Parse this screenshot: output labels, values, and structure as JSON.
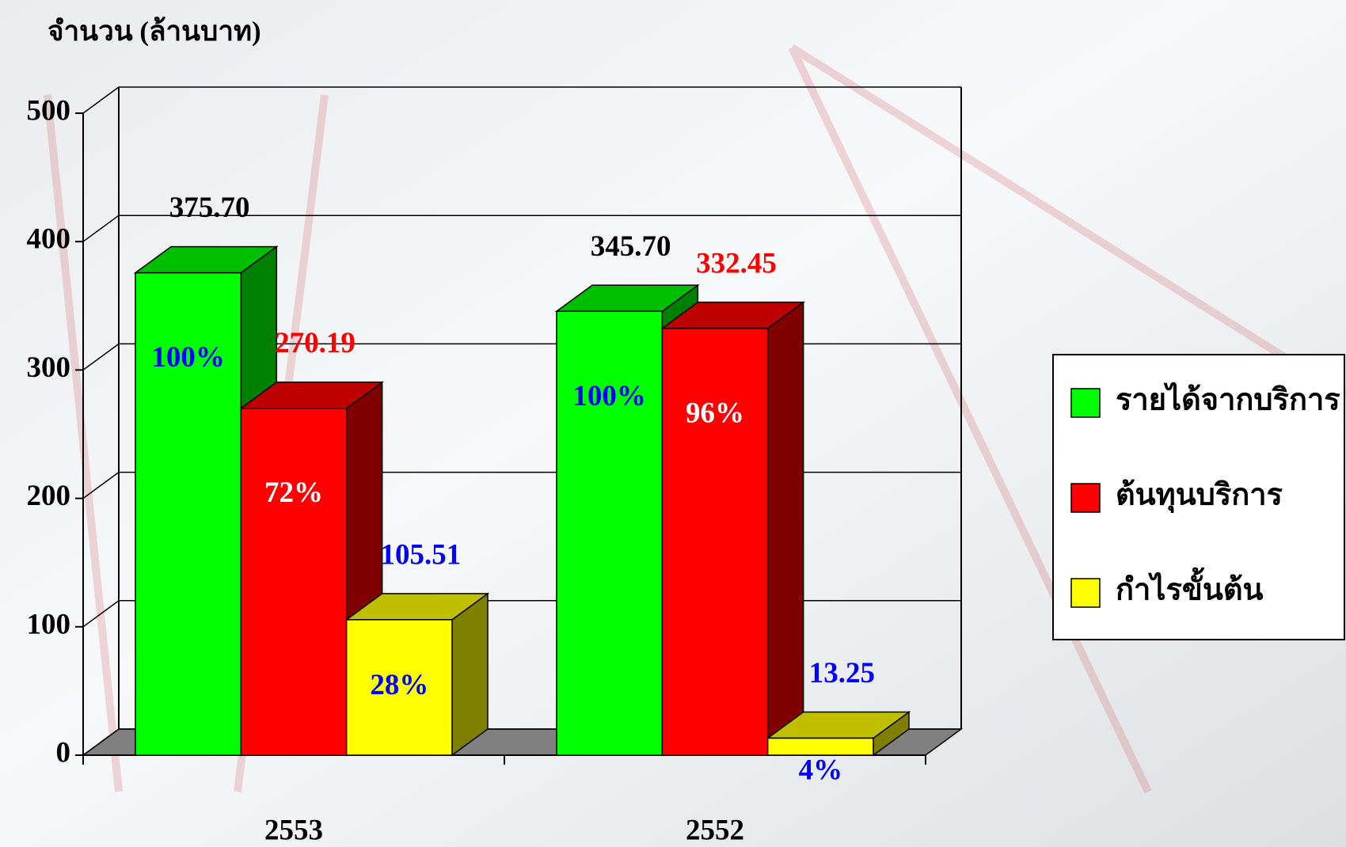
{
  "chart_data": {
    "type": "bar3d",
    "y_axis_label": "จำนวน (ล้านบาท)",
    "categories": [
      "2553",
      "2552"
    ],
    "series": [
      {
        "name": "รายได้จากบริการ",
        "color": "#00ff00",
        "label_color": "#000000",
        "percent_color": "#0000ff",
        "values": [
          375.7,
          345.7
        ],
        "value_labels": [
          "375.70",
          "345.70"
        ],
        "percent_labels": [
          "100%",
          "100%"
        ]
      },
      {
        "name": "ต้นทุนบริการ",
        "color": "#ff0000",
        "label_color": "#ff0000",
        "percent_color": "#ffffff",
        "values": [
          270.19,
          332.45
        ],
        "value_labels": [
          "270.19",
          "332.45"
        ],
        "percent_labels": [
          "72%",
          "96%"
        ]
      },
      {
        "name": "กำไรขั้นต้น",
        "color": "#ffff00",
        "label_color": "#0000ff",
        "percent_color": "#0000ff",
        "values": [
          105.51,
          13.25
        ],
        "value_labels": [
          "105.51",
          "13.25"
        ],
        "percent_labels": [
          "28%",
          "4%"
        ]
      }
    ],
    "ylim": [
      0,
      500
    ],
    "yticks": [
      0,
      100,
      200,
      300,
      400,
      500
    ],
    "grid": true,
    "legend": "right"
  }
}
